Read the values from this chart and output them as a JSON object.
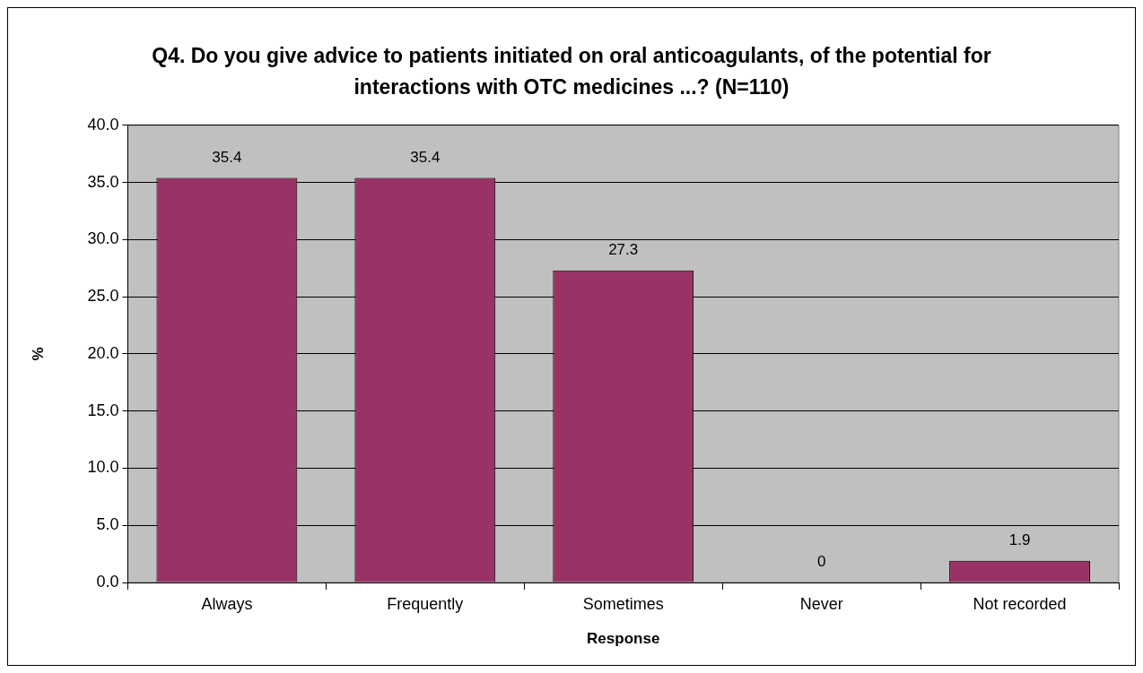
{
  "chart_data": {
    "type": "bar",
    "title": "Q4. Do you give advice to patients initiated on oral anticoagulants, of the potential for interactions with OTC medicines ...? (N=110)",
    "xlabel": "Response",
    "ylabel": "%",
    "categories": [
      "Always",
      "Frequently",
      "Sometimes",
      "Never",
      "Not recorded"
    ],
    "values": [
      35.4,
      35.4,
      27.3,
      0,
      1.9
    ],
    "color": "#993366",
    "ylim": [
      0,
      40
    ],
    "yticks": [
      {
        "value": 0,
        "label": "0.0"
      },
      {
        "value": 5,
        "label": "5.0"
      },
      {
        "value": 10,
        "label": "10.0"
      },
      {
        "value": 15,
        "label": "15.0"
      },
      {
        "value": 20,
        "label": "20.0"
      },
      {
        "value": 25,
        "label": "25.0"
      },
      {
        "value": 30,
        "label": "30.0"
      },
      {
        "value": 35,
        "label": "35.0"
      },
      {
        "value": 40,
        "label": "40.0"
      }
    ],
    "grid": "y",
    "legend": false,
    "data_labels": true
  }
}
